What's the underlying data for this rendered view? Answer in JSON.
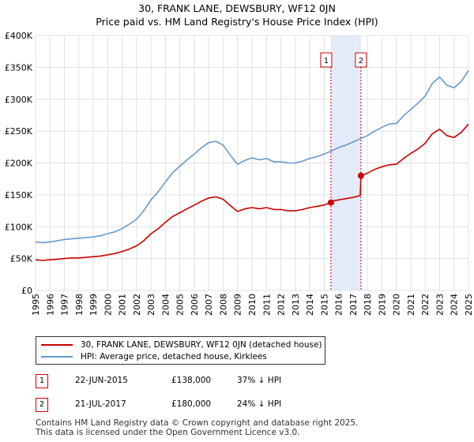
{
  "page": {
    "title_line1": "30, FRANK LANE, DEWSBURY, WF12 0JN",
    "title_line2": "Price paid vs. HM Land Registry's House Price Index (HPI)"
  },
  "legend": {
    "items": [
      {
        "label": "30, FRANK LANE, DEWSBURY, WF12 0JN (detached house)",
        "color": "#cc0000"
      },
      {
        "label": "HPI: Average price, detached house, Kirklees",
        "color": "#6699cc"
      }
    ]
  },
  "transactions": [
    {
      "num": "1",
      "date": "22-JUN-2015",
      "price": "£138,000",
      "hpi_diff": "37% ↓ HPI"
    },
    {
      "num": "2",
      "date": "21-JUL-2017",
      "price": "£180,000",
      "hpi_diff": "24% ↓ HPI"
    }
  ],
  "footer": {
    "line1": "Contains HM Land Registry data © Crown copyright and database right 2025.",
    "line2": "This data is licensed under the Open Government Licence v3.0."
  },
  "chart_data": {
    "type": "line",
    "title": "30, FRANK LANE, DEWSBURY, WF12 0JN",
    "subtitle": "Price paid vs. HM Land Registry's House Price Index (HPI)",
    "xlabel": "",
    "ylabel": "",
    "xlim": [
      1995,
      2025
    ],
    "ylim": [
      0,
      400000
    ],
    "y_ticks": [
      0,
      50000,
      100000,
      150000,
      200000,
      250000,
      300000,
      350000,
      400000
    ],
    "y_tick_labels": [
      "£0",
      "£50K",
      "£100K",
      "£150K",
      "£200K",
      "£250K",
      "£300K",
      "£350K",
      "£400K"
    ],
    "x_ticks": [
      1995,
      1996,
      1997,
      1998,
      1999,
      2000,
      2001,
      2002,
      2003,
      2004,
      2005,
      2006,
      2007,
      2008,
      2009,
      2010,
      2011,
      2012,
      2013,
      2014,
      2015,
      2016,
      2017,
      2018,
      2019,
      2020,
      2021,
      2022,
      2023,
      2024,
      2025
    ],
    "x_tick_labels": [
      "1995",
      "1996",
      "1997",
      "1998",
      "1999",
      "2000",
      "2001",
      "2002",
      "2003",
      "2004",
      "2005",
      "2006",
      "2007",
      "2008",
      "2009",
      "2010",
      "2011",
      "2012",
      "2013",
      "2014",
      "2015",
      "2016",
      "2017",
      "2018",
      "2019",
      "2020",
      "2021",
      "2022",
      "2023",
      "2024",
      "2025"
    ],
    "grid": true,
    "shaded_band": {
      "x_start": 2015.47,
      "x_end": 2017.55,
      "color": "#dde6f7"
    },
    "markers": [
      {
        "label": "1",
        "x": 2015.47,
        "y": 138000
      },
      {
        "label": "2",
        "x": 2017.55,
        "y": 180000
      }
    ],
    "series": [
      {
        "name": "HPI: Average price, detached house, Kirklees",
        "color": "#6699cc",
        "x": [
          1995,
          1995.5,
          1996,
          1996.5,
          1997,
          1997.5,
          1998,
          1998.5,
          1999,
          1999.5,
          2000,
          2000.5,
          2001,
          2001.5,
          2002,
          2002.5,
          2003,
          2003.5,
          2004,
          2004.5,
          2005,
          2005.5,
          2006,
          2006.5,
          2007,
          2007.5,
          2008,
          2008.5,
          2009,
          2009.5,
          2010,
          2010.5,
          2011,
          2011.5,
          2012,
          2012.5,
          2013,
          2013.5,
          2014,
          2014.5,
          2015,
          2015.5,
          2016,
          2016.5,
          2017,
          2017.5,
          2018,
          2018.5,
          2019,
          2019.5,
          2020,
          2020.5,
          2021,
          2021.5,
          2022,
          2022.5,
          2023,
          2023.5,
          2024,
          2024.5,
          2025
        ],
        "values": [
          76000,
          75000,
          76000,
          78000,
          80000,
          81000,
          82000,
          83000,
          84000,
          86000,
          89000,
          92000,
          97000,
          104000,
          112000,
          125000,
          142000,
          155000,
          170000,
          185000,
          195000,
          205000,
          214000,
          224000,
          232000,
          234000,
          228000,
          212000,
          198000,
          204000,
          208000,
          205000,
          207000,
          202000,
          202000,
          200000,
          200000,
          203000,
          207000,
          210000,
          214000,
          219000,
          224000,
          228000,
          233000,
          238000,
          243000,
          250000,
          256000,
          261000,
          262000,
          274000,
          284000,
          294000,
          305000,
          325000,
          335000,
          322000,
          318000,
          328000,
          345000
        ]
      },
      {
        "name": "30, FRANK LANE, DEWSBURY, WF12 0JN (detached house)",
        "color": "#cc0000",
        "x": [
          1995,
          1995.5,
          1996,
          1996.5,
          1997,
          1997.5,
          1998,
          1998.5,
          1999,
          1999.5,
          2000,
          2000.5,
          2001,
          2001.5,
          2002,
          2002.5,
          2003,
          2003.5,
          2004,
          2004.5,
          2005,
          2005.5,
          2006,
          2006.5,
          2007,
          2007.5,
          2008,
          2008.5,
          2009,
          2009.5,
          2010,
          2010.5,
          2011,
          2011.5,
          2012,
          2012.5,
          2013,
          2013.5,
          2014,
          2014.5,
          2015,
          2015.47,
          2015.5,
          2016,
          2016.5,
          2017,
          2017.5,
          2017.55,
          2018,
          2018.5,
          2019,
          2019.5,
          2020,
          2020.5,
          2021,
          2021.5,
          2022,
          2022.5,
          2023,
          2023.5,
          2024,
          2024.5,
          2025
        ],
        "values": [
          48000,
          47000,
          48000,
          49000,
          50000,
          51000,
          51000,
          52000,
          53000,
          54000,
          56000,
          58000,
          61000,
          65000,
          70000,
          78000,
          89000,
          97000,
          107000,
          116000,
          122000,
          128000,
          134000,
          140000,
          145000,
          147000,
          143000,
          133000,
          124000,
          128000,
          130000,
          128000,
          130000,
          127000,
          127000,
          125000,
          125000,
          127000,
          130000,
          132000,
          134000,
          138000,
          140000,
          142000,
          144000,
          146000,
          149000,
          180000,
          184000,
          190000,
          194000,
          197000,
          198000,
          207000,
          215000,
          222000,
          231000,
          246000,
          253000,
          243000,
          240000,
          248000,
          261000
        ]
      }
    ]
  }
}
